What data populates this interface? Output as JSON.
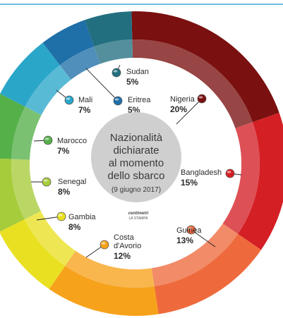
{
  "chart_data": {
    "type": "pie",
    "title": "Nazionalità dichiarate al momento dello sbarco",
    "title_lines": [
      "Nazionalità",
      "dichiarate",
      "al momento",
      "dello sbarco"
    ],
    "subtitle": "(9 giugno 2017)",
    "categories": [
      "Nigeria",
      "Bangladesh",
      "Guinea",
      "Costa d'Avorio",
      "Gambia",
      "Senegal",
      "Marocco",
      "Mali",
      "Eritrea",
      "Sudan"
    ],
    "values": [
      20,
      15,
      13,
      12,
      8,
      8,
      7,
      7,
      5,
      5
    ],
    "value_labels": [
      "20%",
      "15%",
      "13%",
      "12%",
      "8%",
      "8%",
      "7%",
      "7%",
      "5%",
      "5%"
    ],
    "colors": [
      "#7a1010",
      "#d41f25",
      "#ee6a3c",
      "#f7a21b",
      "#e9e022",
      "#a7cc3b",
      "#55b04a",
      "#2aa6c9",
      "#1f6fa8",
      "#226f80"
    ],
    "flag_icons": [
      "nigeria-flag-icon",
      "bangladesh-flag-icon",
      "guinea-flag-icon",
      "ivory-coast-flag-icon",
      "gambia-flag-icon",
      "senegal-flag-icon",
      "morocco-flag-icon",
      "mali-flag-icon",
      "eritrea-flag-icon",
      "sudan-flag-icon"
    ]
  },
  "credit": {
    "main": "centimetri",
    "sub": "LA STAMPA"
  }
}
